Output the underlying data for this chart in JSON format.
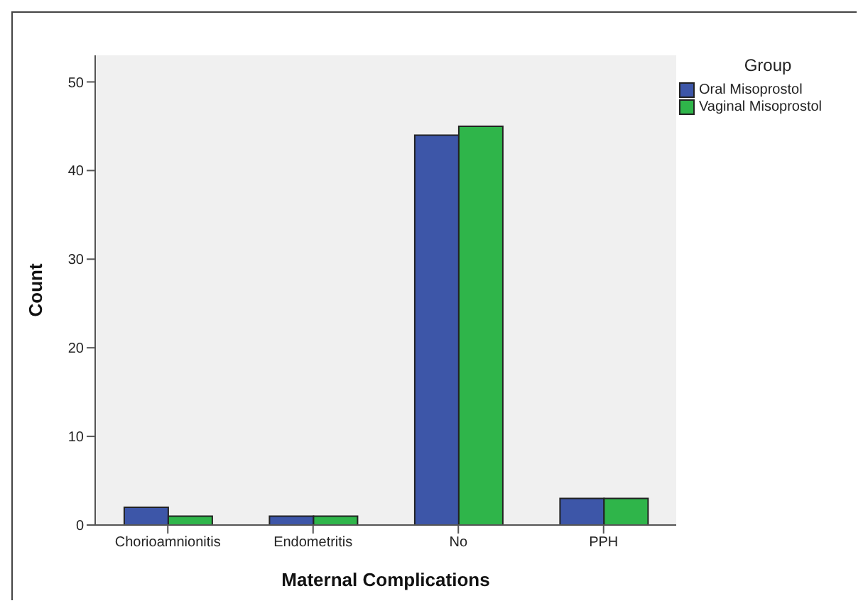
{
  "chart_data": {
    "type": "bar",
    "xlabel": "Maternal Complications",
    "ylabel": "Count",
    "legend_title": "Group",
    "categories": [
      "Chorioamnionitis",
      "Endometritis",
      "No",
      "PPH"
    ],
    "series": [
      {
        "name": "Oral Misoprostol",
        "color": "#3d56a8",
        "values": [
          2,
          1,
          44,
          3
        ]
      },
      {
        "name": "Vaginal Misoprostol",
        "color": "#2fb54a",
        "values": [
          1,
          1,
          45,
          3
        ]
      }
    ],
    "ylim": [
      0,
      53
    ],
    "yticks": [
      0,
      10,
      20,
      30,
      40,
      50
    ],
    "grid": false,
    "legend": "top right"
  }
}
